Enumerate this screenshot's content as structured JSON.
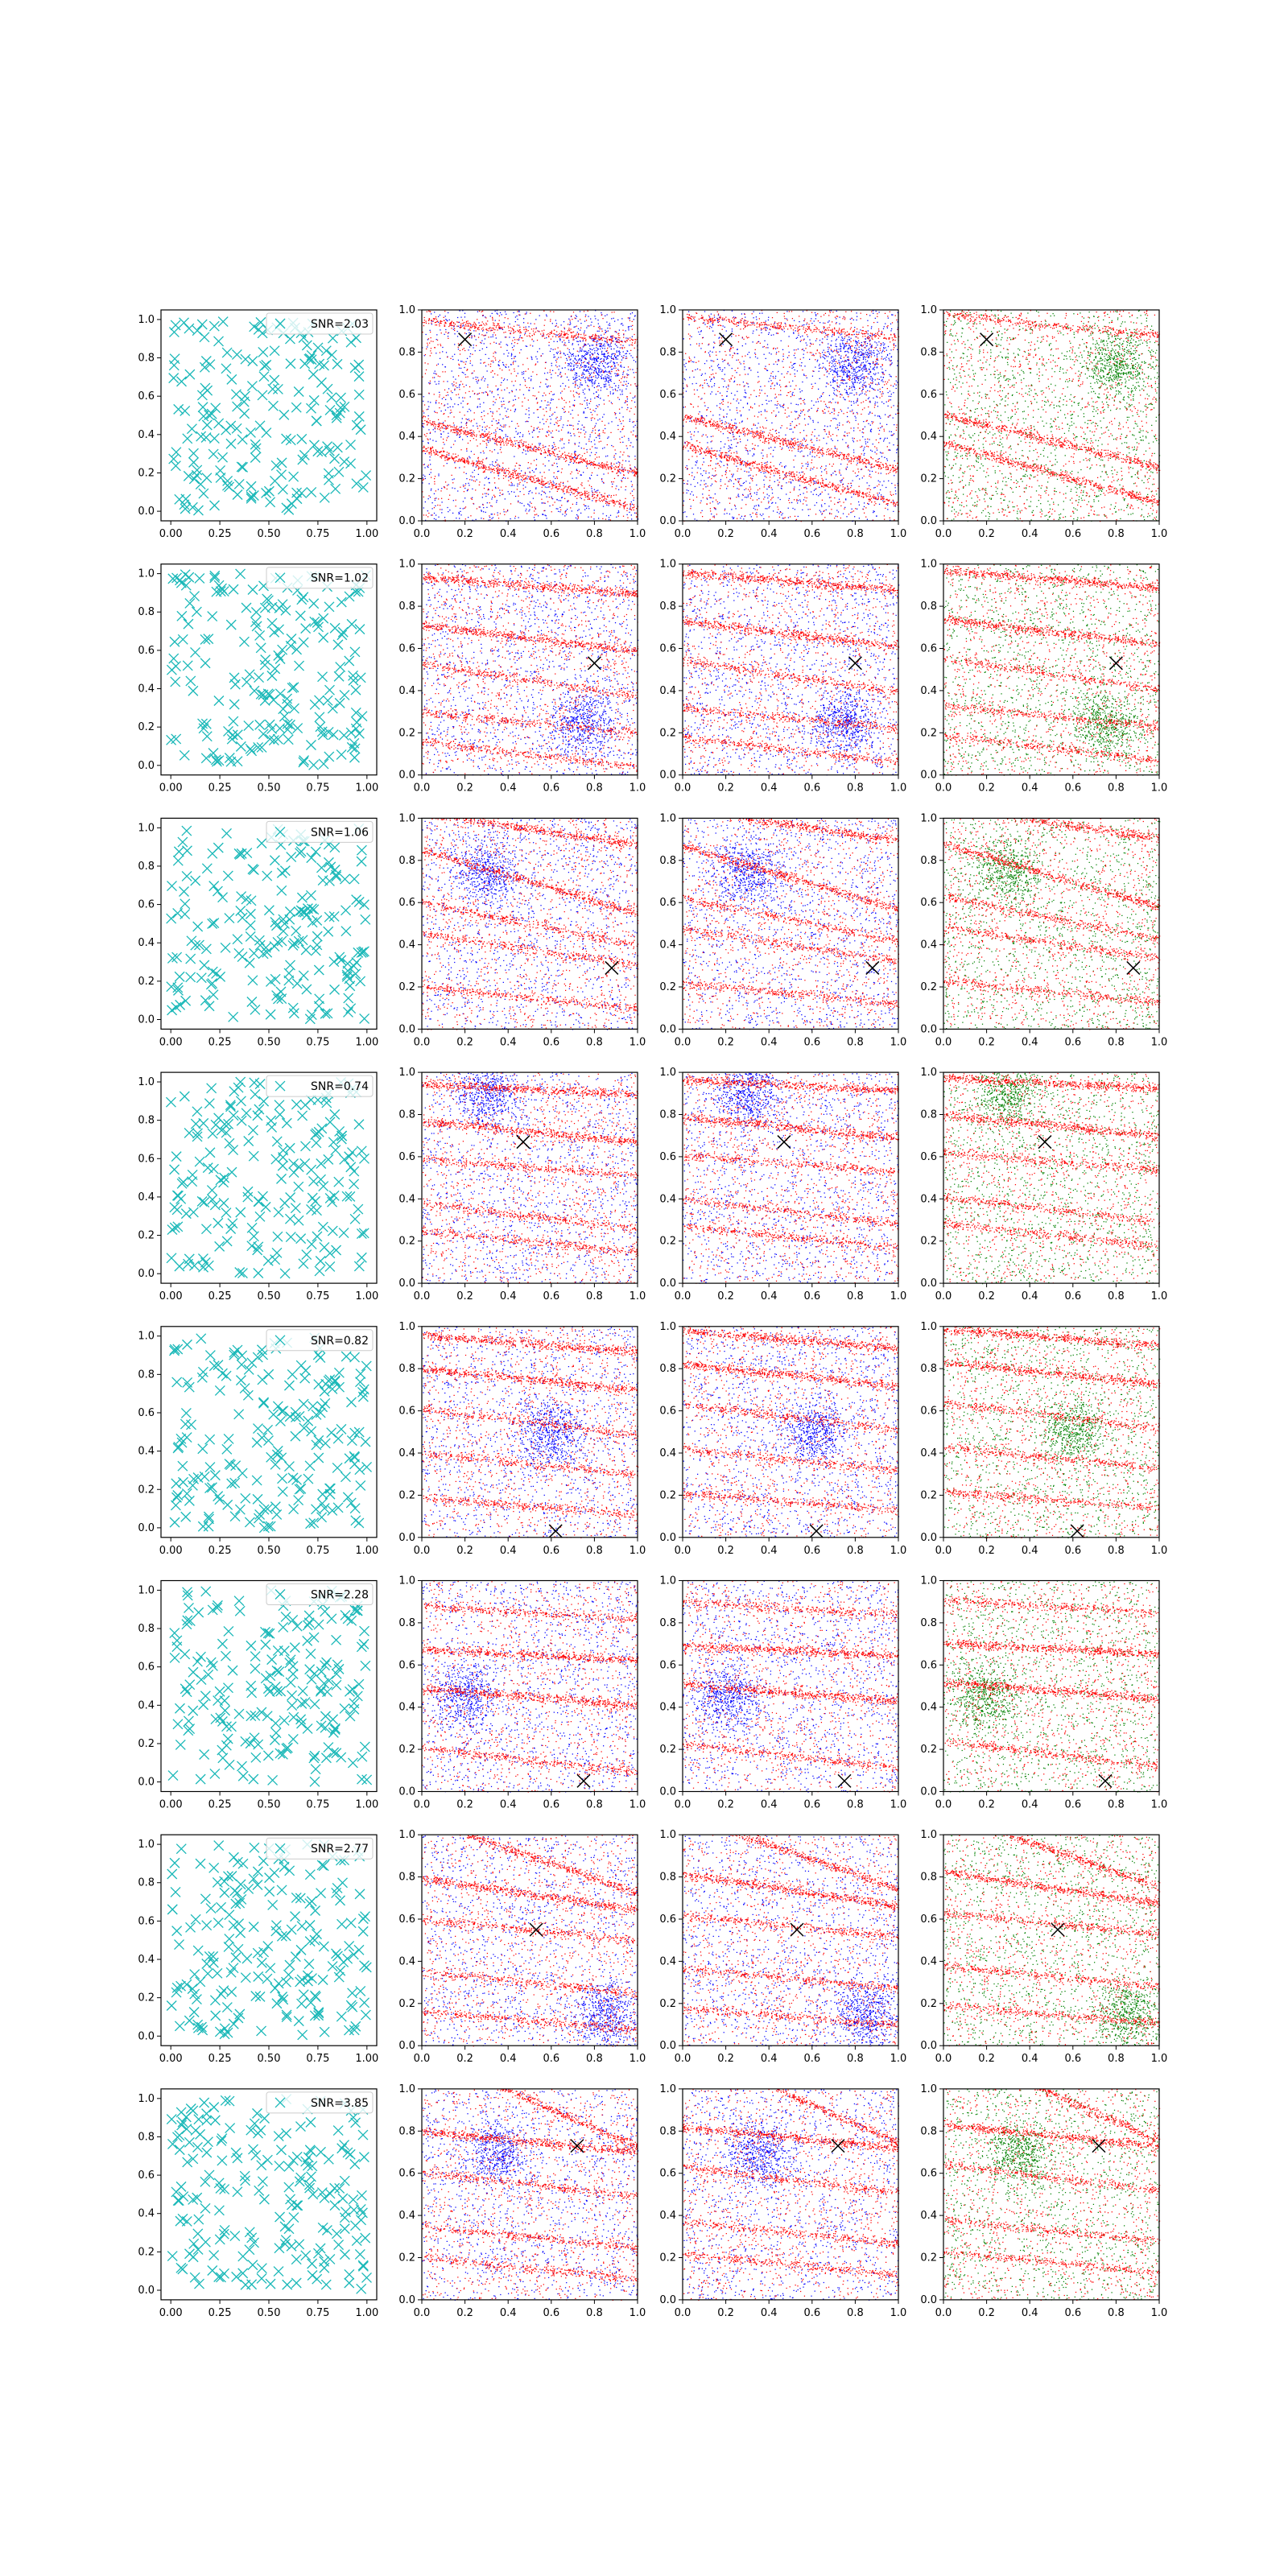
{
  "figure": {
    "rows": 8,
    "cols": 4,
    "colors": {
      "cross": "#1ab8b8",
      "red": "#ff0000",
      "blue": "#0000ff",
      "green": "#008000",
      "marker": "#000000"
    }
  },
  "chart_data": [
    {
      "type": "scatter",
      "row": 1,
      "legend": "SNR=2.03",
      "marker": [
        0.2,
        0.86
      ],
      "xlim": [
        -0.05,
        1.05
      ],
      "ylim": [
        -0.05,
        1.05
      ],
      "ticks": [
        "0.00",
        "0.25",
        "0.50",
        "0.75",
        "1.00"
      ],
      "yticks": [
        "0.0",
        "0.2",
        "0.4",
        "0.6",
        "0.8",
        "1.0"
      ],
      "dense_ticks": [
        "0.0",
        "0.2",
        "0.4",
        "0.6",
        "0.8",
        "1.0"
      ],
      "bands": [
        [
          0.35,
          -0.25
        ],
        [
          0.2,
          -0.28
        ],
        [
          0.9,
          -0.1
        ]
      ],
      "blob": [
        0.8,
        0.75
      ]
    },
    {
      "type": "scatter",
      "row": 2,
      "legend": "SNR=1.02",
      "marker": [
        0.8,
        0.53
      ],
      "xlim": [
        -0.05,
        1.05
      ],
      "ylim": [
        -0.05,
        1.05
      ],
      "ticks": [
        "0.00",
        "0.25",
        "0.50",
        "0.75",
        "1.00"
      ],
      "yticks": [
        "0.0",
        "0.2",
        "0.4",
        "0.6",
        "0.8",
        "1.0"
      ],
      "dense_ticks": [
        "0.0",
        "0.2",
        "0.4",
        "0.6",
        "0.8",
        "1.0"
      ],
      "bands": [
        [
          0.9,
          -0.08
        ],
        [
          0.65,
          -0.12
        ],
        [
          0.45,
          -0.15
        ],
        [
          0.25,
          -0.1
        ],
        [
          0.1,
          -0.12
        ]
      ],
      "blob": [
        0.75,
        0.25
      ]
    },
    {
      "type": "scatter",
      "row": 3,
      "legend": "SNR=1.06",
      "marker": [
        0.88,
        0.29
      ],
      "xlim": [
        -0.05,
        1.05
      ],
      "ylim": [
        -0.05,
        1.05
      ],
      "ticks": [
        "0.00",
        "0.25",
        "0.50",
        "0.75",
        "1.00"
      ],
      "yticks": [
        "0.0",
        "0.2",
        "0.4",
        "0.6",
        "0.8",
        "1.0"
      ],
      "dense_ticks": [
        "0.0",
        "0.2",
        "0.4",
        "0.6",
        "0.8",
        "1.0"
      ],
      "bands": [
        [
          0.95,
          -0.15
        ],
        [
          0.7,
          -0.3
        ],
        [
          0.5,
          -0.2
        ],
        [
          0.38,
          -0.15
        ],
        [
          0.15,
          -0.1
        ]
      ],
      "blob": [
        0.3,
        0.75
      ]
    },
    {
      "type": "scatter",
      "row": 4,
      "legend": "SNR=0.74",
      "marker": [
        0.47,
        0.67
      ],
      "xlim": [
        -0.05,
        1.05
      ],
      "ylim": [
        -0.05,
        1.05
      ],
      "ticks": [
        "0.00",
        "0.25",
        "0.50",
        "0.75",
        "1.00"
      ],
      "yticks": [
        "0.0",
        "0.2",
        "0.4",
        "0.6",
        "0.8",
        "1.0"
      ],
      "dense_ticks": [
        "0.0",
        "0.2",
        "0.4",
        "0.6",
        "0.8",
        "1.0"
      ],
      "bands": [
        [
          0.92,
          -0.05
        ],
        [
          0.72,
          -0.1
        ],
        [
          0.32,
          -0.12
        ],
        [
          0.2,
          -0.1
        ],
        [
          0.55,
          -0.08
        ]
      ],
      "blob": [
        0.3,
        0.9
      ]
    },
    {
      "type": "scatter",
      "row": 5,
      "legend": "SNR=0.82",
      "marker": [
        0.62,
        0.03
      ],
      "xlim": [
        -0.05,
        1.05
      ],
      "ylim": [
        -0.05,
        1.05
      ],
      "ticks": [
        "0.00",
        "0.25",
        "0.50",
        "0.75",
        "1.00"
      ],
      "yticks": [
        "0.0",
        "0.2",
        "0.4",
        "0.6",
        "0.8",
        "1.0"
      ],
      "dense_ticks": [
        "0.0",
        "0.2",
        "0.4",
        "0.6",
        "0.8",
        "1.0"
      ],
      "bands": [
        [
          0.92,
          -0.08
        ],
        [
          0.75,
          -0.1
        ],
        [
          0.55,
          -0.12
        ],
        [
          0.35,
          -0.1
        ],
        [
          0.15,
          -0.08
        ]
      ],
      "blob": [
        0.6,
        0.5
      ]
    },
    {
      "type": "scatter",
      "row": 6,
      "legend": "SNR=2.28",
      "marker": [
        0.75,
        0.05
      ],
      "xlim": [
        -0.05,
        1.05
      ],
      "ylim": [
        -0.05,
        1.05
      ],
      "ticks": [
        "0.00",
        "0.25",
        "0.50",
        "0.75",
        "1.00"
      ],
      "yticks": [
        "0.0",
        "0.2",
        "0.4",
        "0.6",
        "0.8",
        "1.0"
      ],
      "dense_ticks": [
        "0.0",
        "0.2",
        "0.4",
        "0.6",
        "0.8",
        "1.0"
      ],
      "bands": [
        [
          0.65,
          -0.05
        ],
        [
          0.45,
          -0.08
        ],
        [
          0.15,
          -0.12
        ],
        [
          0.85,
          -0.06
        ]
      ],
      "blob": [
        0.2,
        0.45
      ]
    },
    {
      "type": "scatter",
      "row": 7,
      "legend": "SNR=2.77",
      "marker": [
        0.53,
        0.55
      ],
      "xlim": [
        -0.05,
        1.05
      ],
      "ylim": [
        -0.05,
        1.05
      ],
      "ticks": [
        "0.00",
        "0.25",
        "0.50",
        "0.75",
        "1.00"
      ],
      "yticks": [
        "0.0",
        "0.2",
        "0.4",
        "0.6",
        "0.8",
        "1.0"
      ],
      "dense_ticks": [
        "0.0",
        "0.2",
        "0.4",
        "0.6",
        "0.8",
        "1.0"
      ],
      "bands": [
        [
          0.9,
          -0.35
        ],
        [
          0.72,
          -0.15
        ],
        [
          0.55,
          -0.1
        ],
        [
          0.3,
          -0.1
        ],
        [
          0.12,
          -0.08
        ]
      ],
      "blob": [
        0.85,
        0.15
      ]
    },
    {
      "type": "scatter",
      "row": 8,
      "legend": "SNR=3.85",
      "marker": [
        0.72,
        0.73
      ],
      "xlim": [
        -0.05,
        1.05
      ],
      "ylim": [
        -0.05,
        1.05
      ],
      "ticks": [
        "0.00",
        "0.25",
        "0.50",
        "0.75",
        "1.00"
      ],
      "yticks": [
        "0.0",
        "0.2",
        "0.4",
        "0.6",
        "0.8",
        "1.0"
      ],
      "dense_ticks": [
        "0.0",
        "0.2",
        "0.4",
        "0.6",
        "0.8",
        "1.0"
      ],
      "bands": [
        [
          0.95,
          -0.45
        ],
        [
          0.75,
          -0.1
        ],
        [
          0.55,
          -0.12
        ],
        [
          0.3,
          -0.1
        ],
        [
          0.15,
          -0.1
        ]
      ],
      "blob": [
        0.35,
        0.7
      ]
    }
  ]
}
